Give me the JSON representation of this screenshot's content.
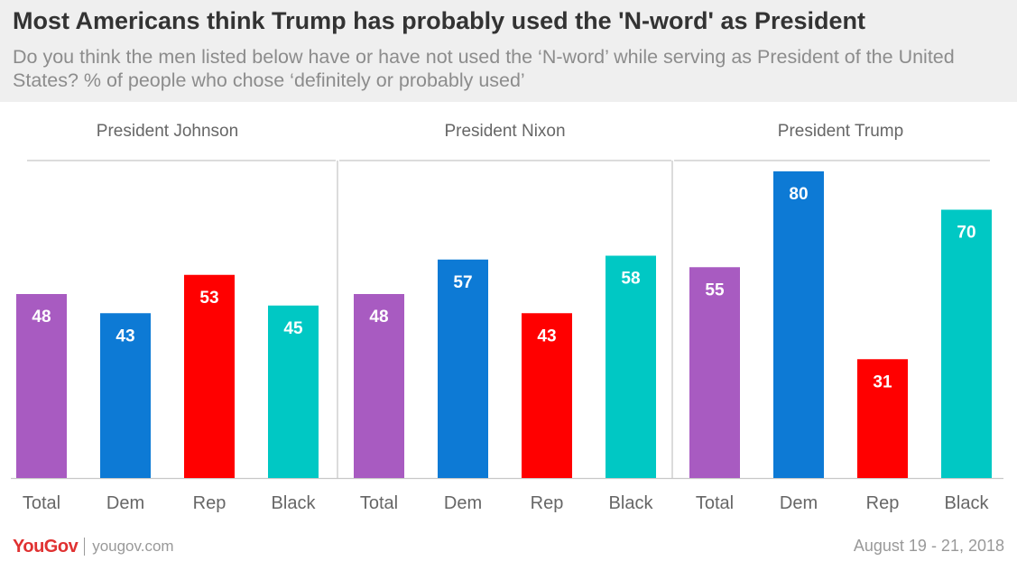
{
  "title": "Most Americans think Trump has probably used the 'N-word' as President",
  "subtitle": "Do you think the men listed below have or have not used the ‘N-word’ while serving as President of the United States? % of people who chose ‘definitely or probably used’",
  "footer": {
    "logo_text": "YouGov",
    "site": "yougov.com",
    "date": "August 19 - 21, 2018"
  },
  "colors": {
    "Total": "#a85bc1",
    "Dem": "#0d7ad5",
    "Rep": "#ff0000",
    "Black": "#00c8c4"
  },
  "chart_data": {
    "type": "bar",
    "categories": [
      "Total",
      "Dem",
      "Rep",
      "Black"
    ],
    "ylim": [
      0,
      80
    ],
    "grid": false,
    "panels": [
      {
        "title": "President Johnson",
        "values": [
          48,
          43,
          53,
          45
        ]
      },
      {
        "title": "President Nixon",
        "values": [
          48,
          57,
          43,
          58
        ]
      },
      {
        "title": "President Trump",
        "values": [
          55,
          80,
          31,
          70
        ]
      }
    ]
  }
}
